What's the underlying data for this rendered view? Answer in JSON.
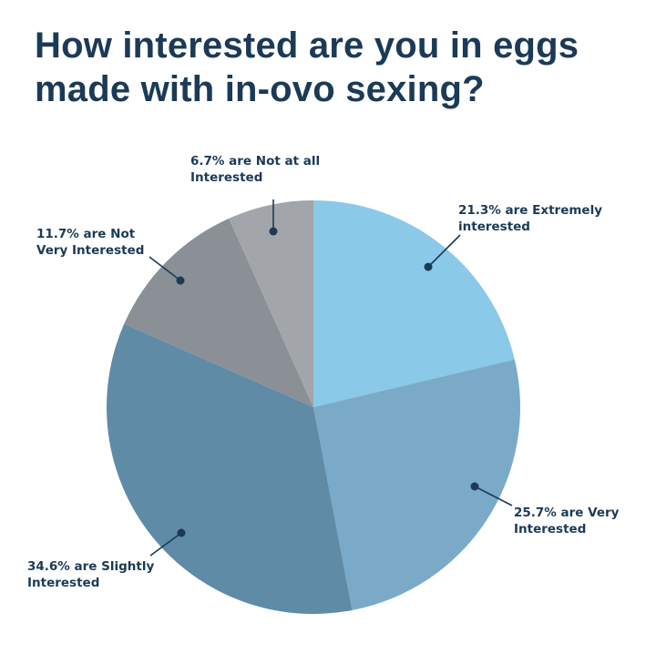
{
  "title_line1": "How interested are you in eggs",
  "title_line2": "made with in-ovo sexing?",
  "chart_data": {
    "type": "pie",
    "title": "How interested are you in eggs made with in-ovo sexing?",
    "slices": [
      {
        "value": 21.3,
        "label_lines": [
          "21.3% are Extremely",
          "interested"
        ],
        "color": "#8ac9e8"
      },
      {
        "value": 25.7,
        "label_lines": [
          "25.7% are Very",
          "Interested"
        ],
        "color": "#7aaac8"
      },
      {
        "value": 34.6,
        "label_lines": [
          "34.6% are Slightly",
          "Interested"
        ],
        "color": "#5f8ba7"
      },
      {
        "value": 11.7,
        "label_lines": [
          "11.7% are Not",
          "Very Interested"
        ],
        "color": "#8a9096"
      },
      {
        "value": 6.7,
        "label_lines": [
          "6.7% are Not at all",
          "Interested"
        ],
        "color": "#a2a5a9"
      }
    ],
    "start": "12 o'clock",
    "direction": "clockwise",
    "legend": "none"
  }
}
